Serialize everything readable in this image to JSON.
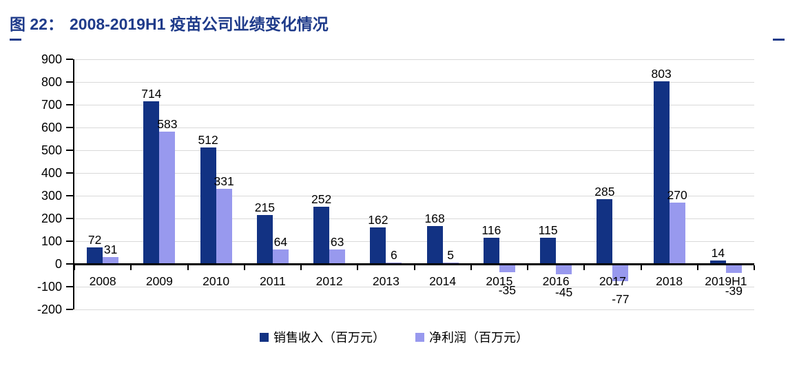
{
  "figure": {
    "title_prefix": "图 22：",
    "title_main": "2008-2019H1 疫苗公司业绩变化情况",
    "accent_color": "#1F3B8A"
  },
  "chart_data": {
    "type": "bar",
    "title": "2008-2019H1 疫苗公司业绩变化情况",
    "categories": [
      "2008",
      "2009",
      "2010",
      "2011",
      "2012",
      "2013",
      "2014",
      "2015",
      "2016",
      "2017",
      "2018",
      "2019H1"
    ],
    "series": [
      {
        "name": "销售收入（百万元）",
        "color": "#123283",
        "values": [
          72,
          714,
          512,
          215,
          252,
          162,
          168,
          116,
          115,
          285,
          803,
          14
        ]
      },
      {
        "name": "净利润（百万元）",
        "color": "#9899EE",
        "values": [
          31,
          583,
          331,
          64,
          63,
          6,
          5,
          -35,
          -45,
          -77,
          270,
          -39
        ]
      }
    ],
    "ylim": [
      -200,
      900
    ],
    "ytick_step": 100,
    "yticks": [
      "900",
      "800",
      "700",
      "600",
      "500",
      "400",
      "300",
      "200",
      "100",
      "0",
      "-100",
      "-200"
    ],
    "grid": true,
    "grid_color": "#D9D9D9",
    "axis_color": "#000000",
    "legend_position": "bottom",
    "data_labels": true
  }
}
